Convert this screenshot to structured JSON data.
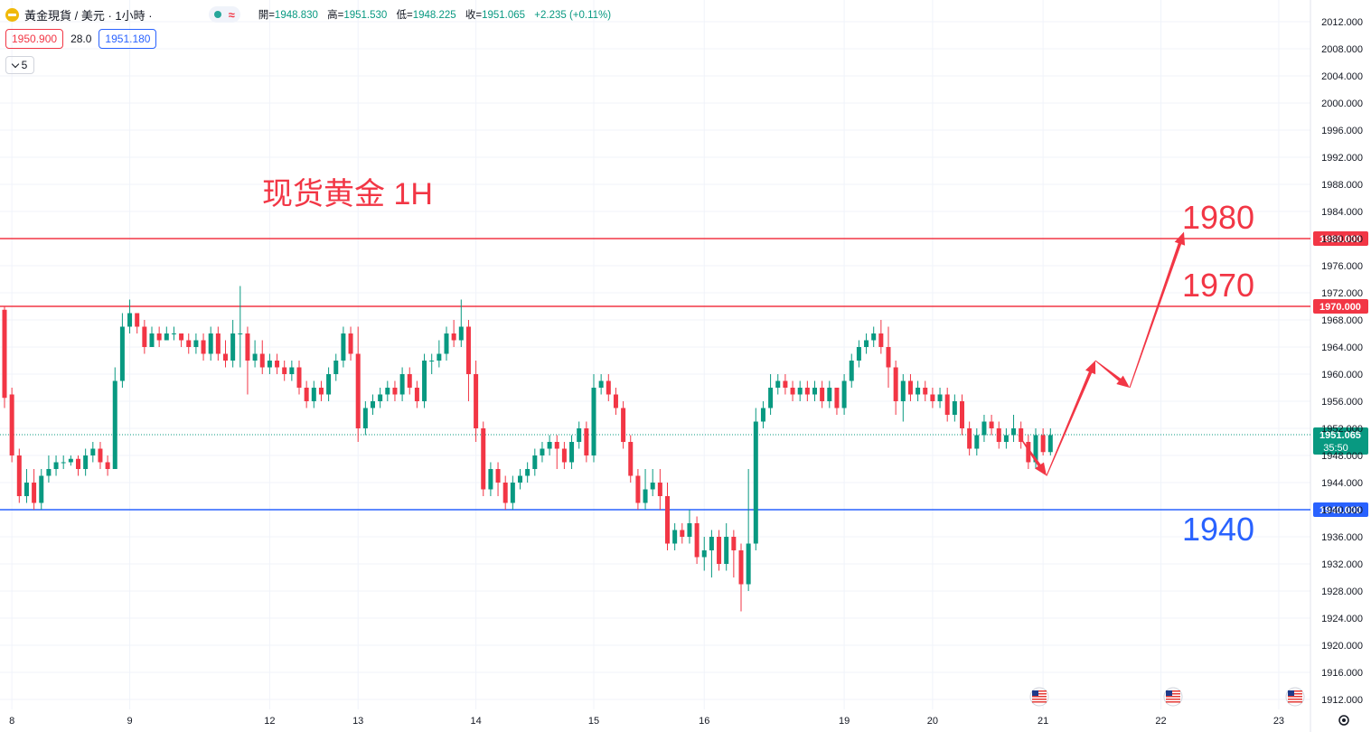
{
  "header": {
    "title": "黃金現貨 / 美元 · 1小時 ·",
    "approx_symbol": "≈",
    "ohlc": [
      {
        "label": "開=",
        "value": "1948.830"
      },
      {
        "label": "高=",
        "value": "1951.530"
      },
      {
        "label": "低=",
        "value": "1948.225"
      },
      {
        "label": "收=",
        "value": "1951.065"
      }
    ],
    "change": "+2.235 (+0.11%)"
  },
  "quote": {
    "bid": "1950.900",
    "spread": "28.0",
    "ask": "1951.180"
  },
  "indicator_toggle": "5",
  "annotation_title": "现货黄金 1H",
  "colors": {
    "up": "#089981",
    "down": "#f23645",
    "resistance": "#f23645",
    "support": "#2962ff",
    "text_red": "#f23645",
    "text_blue": "#2962ff"
  },
  "chart_data": {
    "type": "candlestick",
    "yaxis": {
      "min": 1910,
      "max": 2014,
      "ticks": [
        "2012.000",
        "2008.000",
        "2004.000",
        "2000.000",
        "1996.000",
        "1992.000",
        "1988.000",
        "1984.000",
        "1980.000",
        "1976.000",
        "1972.000",
        "1968.000",
        "1964.000",
        "1960.000",
        "1956.000",
        "1952.000",
        "1948.000",
        "1944.000",
        "1940.000",
        "1936.000",
        "1932.000",
        "1928.000",
        "1924.000",
        "1920.000",
        "1916.000",
        "1912.000"
      ]
    },
    "xaxis": {
      "ticks": [
        {
          "label": "8",
          "bar": 1
        },
        {
          "label": "9",
          "bar": 17
        },
        {
          "label": "12",
          "bar": 36
        },
        {
          "label": "13",
          "bar": 48
        },
        {
          "label": "14",
          "bar": 64
        },
        {
          "label": "15",
          "bar": 80
        },
        {
          "label": "16",
          "bar": 95
        },
        {
          "label": "19",
          "bar": 114
        },
        {
          "label": "20",
          "bar": 126
        },
        {
          "label": "21",
          "bar": 141
        },
        {
          "label": "22",
          "bar": 157
        },
        {
          "label": "23",
          "bar": 173
        }
      ]
    },
    "levels": [
      {
        "price": 1980,
        "label": "1980.000",
        "text": "1980",
        "color": "#f23645"
      },
      {
        "price": 1970,
        "label": "1970.000",
        "text": "1970",
        "color": "#f23645"
      },
      {
        "price": 1940,
        "label": "1940.000",
        "text": "1940",
        "color": "#2962ff"
      }
    ],
    "current_price": {
      "value": 1951.065,
      "label": "1951.065",
      "countdown": "35:50"
    },
    "projection": [
      [
        1958,
        1949
      ],
      [
        1961,
        1945
      ],
      [
        1966,
        1962
      ],
      [
        1971,
        1958
      ],
      [
        1976,
        1981
      ]
    ],
    "projection_prices": [
      1949,
      1945,
      1962,
      1958,
      1981
    ],
    "candles": [
      [
        1969.5,
        1956.5,
        1970,
        1955
      ],
      [
        1957,
        1948,
        1958,
        1947
      ],
      [
        1948,
        1942,
        1949,
        1941
      ],
      [
        1942,
        1944,
        1946,
        1941
      ],
      [
        1944,
        1941,
        1946,
        1940
      ],
      [
        1941,
        1945,
        1946,
        1940
      ],
      [
        1945,
        1946,
        1948,
        1944
      ],
      [
        1946,
        1947,
        1948,
        1945
      ],
      [
        1947,
        1947,
        1948,
        1946
      ],
      [
        1947,
        1947.5,
        1948,
        1946.5
      ],
      [
        1947.5,
        1946,
        1948,
        1945
      ],
      [
        1946,
        1948,
        1949,
        1945
      ],
      [
        1948,
        1949,
        1950,
        1947
      ],
      [
        1949,
        1947,
        1950,
        1946
      ],
      [
        1947,
        1946,
        1948,
        1945
      ],
      [
        1946,
        1959,
        1961,
        1946
      ],
      [
        1959,
        1967,
        1969,
        1958
      ],
      [
        1967,
        1969,
        1971,
        1966
      ],
      [
        1969,
        1967,
        1969,
        1966
      ],
      [
        1967,
        1964,
        1968,
        1963
      ],
      [
        1964,
        1966,
        1967,
        1964
      ],
      [
        1966,
        1965,
        1967,
        1964
      ],
      [
        1965,
        1966,
        1967,
        1965
      ],
      [
        1966,
        1966,
        1967,
        1965
      ],
      [
        1966,
        1965,
        1966,
        1964
      ],
      [
        1965,
        1964,
        1966,
        1963
      ],
      [
        1964,
        1965,
        1966,
        1963
      ],
      [
        1965,
        1963,
        1966,
        1962
      ],
      [
        1963,
        1966,
        1967,
        1962
      ],
      [
        1966,
        1963,
        1967,
        1962
      ],
      [
        1963,
        1962,
        1965,
        1961
      ],
      [
        1962,
        1966,
        1968,
        1961
      ],
      [
        1966,
        1966,
        1973,
        1961
      ],
      [
        1966,
        1962,
        1967,
        1957
      ],
      [
        1962,
        1963,
        1965,
        1961
      ],
      [
        1963,
        1961,
        1965,
        1960
      ],
      [
        1961,
        1962,
        1963,
        1960
      ],
      [
        1962,
        1961,
        1963,
        1960
      ],
      [
        1961,
        1960,
        1962,
        1959
      ],
      [
        1960,
        1961,
        1962,
        1959
      ],
      [
        1961,
        1958,
        1962,
        1957
      ],
      [
        1958,
        1956,
        1959,
        1955
      ],
      [
        1956,
        1958,
        1959,
        1955
      ],
      [
        1958,
        1957,
        1959,
        1956
      ],
      [
        1957,
        1960,
        1961,
        1956
      ],
      [
        1960,
        1962,
        1963,
        1959
      ],
      [
        1962,
        1966,
        1967,
        1961
      ],
      [
        1966,
        1963,
        1967,
        1962
      ],
      [
        1963,
        1952,
        1967,
        1950
      ],
      [
        1952,
        1955,
        1956,
        1951
      ],
      [
        1955,
        1956,
        1957,
        1954
      ],
      [
        1956,
        1957,
        1958,
        1955
      ],
      [
        1957,
        1958,
        1959,
        1956
      ],
      [
        1958,
        1957,
        1959,
        1956
      ],
      [
        1957,
        1960,
        1961,
        1956
      ],
      [
        1960,
        1958,
        1961,
        1957
      ],
      [
        1958,
        1956,
        1959,
        1955
      ],
      [
        1956,
        1962,
        1963,
        1955
      ],
      [
        1962,
        1962,
        1963,
        1960
      ],
      [
        1962,
        1963,
        1965,
        1961
      ],
      [
        1963,
        1966,
        1967,
        1962
      ],
      [
        1966,
        1965,
        1968,
        1964
      ],
      [
        1965,
        1967,
        1971,
        1964
      ],
      [
        1967,
        1960,
        1968,
        1956
      ],
      [
        1960,
        1952,
        1962,
        1950
      ],
      [
        1952,
        1943,
        1953,
        1942
      ],
      [
        1943,
        1946,
        1947,
        1942
      ],
      [
        1946,
        1944,
        1947,
        1942
      ],
      [
        1944,
        1941,
        1945,
        1940
      ],
      [
        1941,
        1944,
        1945,
        1940
      ],
      [
        1944,
        1945,
        1946,
        1943
      ],
      [
        1945,
        1946,
        1947,
        1944
      ],
      [
        1946,
        1948,
        1949,
        1945
      ],
      [
        1948,
        1949,
        1950,
        1947
      ],
      [
        1949,
        1950,
        1951,
        1948
      ],
      [
        1950,
        1949,
        1951,
        1946
      ],
      [
        1949,
        1947,
        1950,
        1946
      ],
      [
        1947,
        1950,
        1951,
        1946
      ],
      [
        1950,
        1952,
        1953,
        1949
      ],
      [
        1952,
        1948,
        1953,
        1947
      ],
      [
        1948,
        1958,
        1960,
        1947
      ],
      [
        1958,
        1959,
        1960,
        1957
      ],
      [
        1959,
        1957,
        1960,
        1956
      ],
      [
        1957,
        1955,
        1958,
        1954
      ],
      [
        1955,
        1950,
        1956,
        1949
      ],
      [
        1950,
        1945,
        1951,
        1944
      ],
      [
        1945,
        1941,
        1946,
        1940
      ],
      [
        1941,
        1943,
        1946,
        1940
      ],
      [
        1943,
        1944,
        1946,
        1942
      ],
      [
        1944,
        1942,
        1946,
        1940
      ],
      [
        1942,
        1935,
        1944,
        1934
      ],
      [
        1935,
        1937,
        1938,
        1934
      ],
      [
        1937,
        1936,
        1938,
        1935
      ],
      [
        1936,
        1938,
        1940,
        1935
      ],
      [
        1938,
        1933,
        1939,
        1932
      ],
      [
        1933,
        1934,
        1936,
        1931
      ],
      [
        1934,
        1936,
        1937,
        1930
      ],
      [
        1936,
        1932,
        1937,
        1931
      ],
      [
        1932,
        1936,
        1938,
        1931
      ],
      [
        1936,
        1934,
        1937,
        1930
      ],
      [
        1934,
        1929,
        1935,
        1925
      ],
      [
        1929,
        1935,
        1946,
        1928
      ],
      [
        1935,
        1953,
        1955,
        1934
      ],
      [
        1953,
        1955,
        1956,
        1952
      ],
      [
        1955,
        1958,
        1960,
        1954
      ],
      [
        1958,
        1959,
        1960,
        1957
      ],
      [
        1959,
        1958,
        1960,
        1957
      ],
      [
        1958,
        1957,
        1959,
        1956
      ],
      [
        1957,
        1958,
        1959,
        1956
      ],
      [
        1958,
        1957,
        1959,
        1956
      ],
      [
        1957,
        1958,
        1959,
        1956
      ],
      [
        1958,
        1956,
        1959,
        1955
      ],
      [
        1956,
        1958,
        1959,
        1955
      ],
      [
        1958,
        1955,
        1958,
        1954
      ],
      [
        1955,
        1959,
        1960,
        1954
      ],
      [
        1959,
        1962,
        1963,
        1958
      ],
      [
        1962,
        1964,
        1965,
        1961
      ],
      [
        1964,
        1965,
        1966,
        1963
      ],
      [
        1965,
        1966,
        1967,
        1964
      ],
      [
        1966,
        1964,
        1968,
        1963
      ],
      [
        1964,
        1961,
        1967,
        1958
      ],
      [
        1961,
        1956,
        1962,
        1954
      ],
      [
        1956,
        1959,
        1960,
        1953
      ],
      [
        1959,
        1957,
        1960,
        1956
      ],
      [
        1957,
        1958,
        1959,
        1956
      ],
      [
        1958,
        1957,
        1959,
        1956
      ],
      [
        1957,
        1956,
        1958,
        1955
      ],
      [
        1956,
        1957,
        1958,
        1955
      ],
      [
        1957,
        1954,
        1958,
        1953
      ],
      [
        1954,
        1956,
        1957,
        1953
      ],
      [
        1956,
        1952,
        1957,
        1951
      ],
      [
        1952,
        1949,
        1953,
        1948
      ],
      [
        1949,
        1951,
        1952,
        1948
      ],
      [
        1951,
        1953,
        1954,
        1950
      ],
      [
        1953,
        1952,
        1954,
        1951
      ],
      [
        1952,
        1950,
        1953,
        1949
      ],
      [
        1950,
        1951,
        1952,
        1949
      ],
      [
        1951,
        1952,
        1954,
        1950
      ],
      [
        1952,
        1950,
        1953,
        1949
      ],
      [
        1950,
        1947,
        1951,
        1946
      ],
      [
        1947,
        1951,
        1952,
        1946
      ],
      [
        1951,
        1948.5,
        1952,
        1948
      ],
      [
        1948.5,
        1951,
        1952,
        1948
      ]
    ]
  }
}
